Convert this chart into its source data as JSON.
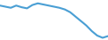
{
  "values": [
    72,
    70,
    68,
    72,
    69,
    67,
    73,
    76,
    74,
    72,
    70,
    68,
    65,
    60,
    52,
    44,
    36,
    26,
    18,
    14,
    17
  ],
  "line_color": "#4a9fd4",
  "linewidth": 1.5,
  "background_color": "#ffffff",
  "ylim_min": 10,
  "ylim_max": 82
}
